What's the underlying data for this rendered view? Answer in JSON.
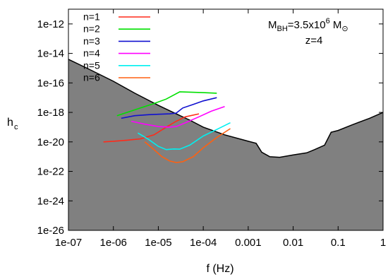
{
  "chart_data": {
    "type": "line",
    "title": "",
    "xlabel": "f (Hz)",
    "ylabel": "h",
    "ylabel_subscript": "c",
    "xscale": "log",
    "yscale": "log",
    "xlim": [
      1e-07,
      1
    ],
    "ylim": [
      1e-26,
      1e-11
    ],
    "x_tick_values": [
      1e-07,
      1e-06,
      1e-05,
      0.0001,
      0.001,
      0.01,
      0.1,
      1
    ],
    "x_tick_labels": [
      "1e-07",
      "1e-06",
      "1e-05",
      "1e-04",
      "0.001",
      "0.01",
      "0.1",
      "1"
    ],
    "y_tick_values": [
      1e-12,
      1e-14,
      1e-16,
      1e-18,
      1e-20,
      1e-22,
      1e-24,
      1e-26
    ],
    "y_tick_labels": [
      "1e-12",
      "1e-14",
      "1e-16",
      "1e-18",
      "1e-20",
      "1e-22",
      "1e-24",
      "1e-26"
    ],
    "legend_position": "top-left",
    "annotation": {
      "line1_prefix": "M",
      "line1_sub": "BH",
      "line1_mid": "=3.5x10",
      "line1_sup": "6",
      "line1_unit": " M",
      "line1_unit_sub": "⊙",
      "line2": "z=4"
    },
    "noise_curve": {
      "fill_color": "#808080",
      "x": [
        1e-07,
        3e-07,
        1e-06,
        3e-06,
        1e-05,
        2e-05,
        5e-05,
        0.0001,
        0.0003,
        0.001,
        0.0015,
        0.002,
        0.003,
        0.005,
        0.01,
        0.02,
        0.03,
        0.05,
        0.07,
        0.1,
        0.2,
        0.5,
        1
      ],
      "y": [
        4e-15,
        8e-16,
        1.3e-16,
        2e-17,
        3e-18,
        1.1e-18,
        3e-19,
        1e-19,
        3e-20,
        1.1e-20,
        8e-21,
        2e-21,
        1e-21,
        9e-22,
        1.3e-21,
        1.8e-21,
        3e-21,
        6e-21,
        4.5e-20,
        6e-20,
        1.4e-19,
        4e-19,
        1e-18
      ]
    },
    "series": [
      {
        "name": "n=1",
        "color": "#ff2a1a",
        "x": [
          6e-07,
          1e-06,
          2e-06,
          4e-06,
          8e-06,
          1.5e-05,
          2.5e-05,
          4e-05,
          8e-05
        ],
        "y": [
          1e-20,
          1.1e-20,
          1.3e-20,
          1.6e-20,
          3e-20,
          1e-19,
          2.5e-19,
          5e-19,
          8e-19
        ]
      },
      {
        "name": "n=2",
        "color": "#00e000",
        "x": [
          1.2e-06,
          2e-06,
          4e-06,
          8e-06,
          1.5e-05,
          3e-05,
          0.0001,
          0.0002
        ],
        "y": [
          6e-19,
          1e-18,
          2e-18,
          4e-18,
          8e-18,
          2.5e-17,
          2.2e-17,
          2e-17
        ]
      },
      {
        "name": "n=3",
        "color": "#1010d0",
        "x": [
          1.5e-06,
          3e-06,
          6e-06,
          1e-05,
          1.8e-05,
          2.5e-05,
          3.5e-05,
          6e-05,
          0.0001,
          0.0002
        ],
        "y": [
          4e-19,
          6e-19,
          7e-19,
          7.5e-19,
          8e-19,
          9e-19,
          2e-18,
          3.5e-18,
          6e-18,
          1e-17
        ]
      },
      {
        "name": "n=4",
        "color": "#ff00ff",
        "x": [
          2.5e-06,
          5e-06,
          1e-05,
          1.8e-05,
          2.5e-05,
          4e-05,
          8e-05,
          0.00015,
          0.0003
        ],
        "y": [
          2.5e-19,
          1.6e-19,
          1.1e-19,
          1e-19,
          1.1e-19,
          2e-19,
          5e-19,
          1.2e-18,
          2.5e-18
        ]
      },
      {
        "name": "n=5",
        "color": "#00f0f0",
        "x": [
          3.5e-06,
          6e-06,
          1e-05,
          1.5e-05,
          2.2e-05,
          3e-05,
          5e-05,
          0.0001,
          0.0002,
          0.0004
        ],
        "y": [
          4e-20,
          1.5e-20,
          5e-21,
          3e-21,
          3.3e-21,
          3.2e-21,
          6e-21,
          2.5e-20,
          7e-20,
          2e-19
        ]
      },
      {
        "name": "n=6",
        "color": "#ff6010",
        "x": [
          5e-06,
          8e-06,
          1.2e-05,
          1.8e-05,
          2.5e-05,
          3.5e-05,
          6e-05,
          0.0001,
          0.0002,
          0.0004
        ],
        "y": [
          1e-20,
          3e-21,
          1e-21,
          5e-22,
          4e-22,
          4.5e-22,
          1e-21,
          4e-21,
          2e-20,
          8e-20
        ]
      }
    ]
  }
}
